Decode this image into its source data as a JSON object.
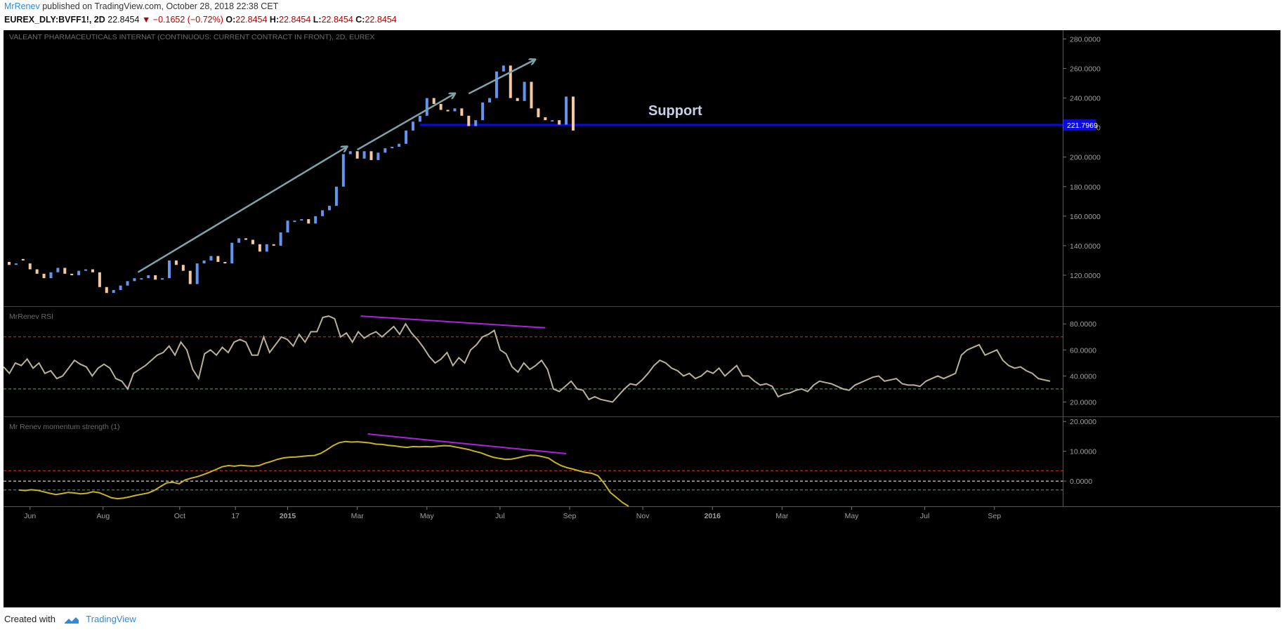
{
  "header": {
    "author": "MrRenev",
    "published_text": "published on TradingView.com, October 28, 2018 22:38 CET",
    "symbol": "EUREX_DLY:BVFF1!, 2D",
    "last": "22.8454",
    "change_arrow": "▼",
    "change": "−0.1652 (−0.72%)",
    "o_label": "O:",
    "o": "22.8454",
    "h_label": "H:",
    "h": "22.8454",
    "l_label": "L:",
    "l": "22.8454",
    "c_label": "C:",
    "c": "22.8454"
  },
  "footer": {
    "created_with": "Created with",
    "brand": "TradingView"
  },
  "colors": {
    "background": "#000000",
    "up_bar": "#6495ed",
    "down_bar": "#f5c8a0",
    "arrow": "#7fa3a8",
    "support_line": "#0a0adf",
    "divergence": "#b020e0",
    "rsi_line": "#b8b09a",
    "momentum_line": "#c8b420",
    "level_red": "#e03030",
    "level_green": "#50b050",
    "level_white": "#ffffff"
  },
  "chart_data": [
    {
      "type": "bar",
      "title": "VALEANT PHARMACEUTICALS INTERNAT (CONTINUOUS: CURRENT CONTRACT IN FRONT), 2D, EUREX",
      "ylim": [
        100,
        285
      ],
      "y_ticks": [
        "280.0000",
        "260.0000",
        "240.0000",
        "220.0000",
        "200.0000",
        "180.0000",
        "160.0000",
        "140.0000",
        "120.0000"
      ],
      "x_ticks": [
        "Jun",
        "Aug",
        "Oct",
        "17",
        "2015",
        "Mar",
        "May",
        "Jul",
        "Sep",
        "Nov",
        "2016",
        "Mar",
        "May",
        "Jul",
        "Sep"
      ],
      "x_range": [
        0,
        300
      ],
      "x_tick_positions": [
        6,
        27,
        49,
        65,
        80,
        100,
        120,
        141,
        161,
        182,
        202,
        222,
        242,
        263,
        283
      ],
      "support": {
        "label": "Support",
        "value": 221.7969,
        "value_label": "221.7969",
        "x_from": 118
      },
      "arrows": [
        {
          "from": [
            37,
            122
          ],
          "to": [
            97,
            207
          ]
        },
        {
          "from": [
            100,
            205
          ],
          "to": [
            128,
            243
          ]
        },
        {
          "from": [
            132,
            243
          ],
          "to": [
            151,
            266
          ]
        }
      ],
      "series": [
        {
          "values": [
            [
              0,
              129,
              133,
              131,
              127
            ],
            [
              2,
              127,
              131,
              130,
              128
            ],
            [
              4,
              131,
              129,
              130,
              130
            ],
            [
              6,
              128,
              124,
              124,
              124
            ],
            [
              8,
              124,
              119,
              119,
              121
            ],
            [
              10,
              121,
              117,
              117,
              118
            ],
            [
              12,
              118,
              122,
              122,
              122
            ],
            [
              14,
              122,
              125,
              125,
              125
            ],
            [
              16,
              125,
              122,
              122,
              121
            ],
            [
              18,
              121,
              119,
              119,
              120
            ],
            [
              20,
              120,
              119,
              120,
              123
            ],
            [
              22,
              123,
              125,
              125,
              124
            ],
            [
              24,
              124,
              125,
              124,
              122
            ],
            [
              26,
              122,
              114,
              114,
              112
            ],
            [
              28,
              112,
              109,
              109,
              108
            ],
            [
              30,
              108,
              112,
              112,
              110
            ],
            [
              32,
              110,
              114,
              114,
              113
            ],
            [
              34,
              113,
              117,
              117,
              116
            ],
            [
              36,
              116,
              119,
              119,
              118
            ],
            [
              38,
              118,
              119,
              119,
              118
            ],
            [
              40,
              118,
              121,
              121,
              120
            ],
            [
              42,
              120,
              120,
              120,
              117
            ],
            [
              44,
              117,
              118,
              118,
              118
            ],
            [
              46,
              118,
              130,
              130,
              130
            ],
            [
              48,
              130,
              126,
              126,
              127
            ],
            [
              50,
              127,
              124,
              124,
              123
            ],
            [
              52,
              123,
              115,
              115,
              114
            ],
            [
              54,
              114,
              125,
              125,
              128
            ],
            [
              56,
              128,
              130,
              130,
              130
            ],
            [
              58,
              130,
              132,
              132,
              133
            ],
            [
              60,
              133,
              130,
              130,
              129
            ],
            [
              62,
              129,
              129,
              129,
              128
            ],
            [
              64,
              128,
              140,
              140,
              142
            ],
            [
              66,
              142,
              146,
              146,
              145
            ],
            [
              68,
              145,
              143,
              143,
              144
            ],
            [
              70,
              144,
              140,
              140,
              141
            ],
            [
              72,
              141,
              137,
              137,
              136
            ],
            [
              74,
              136,
              140,
              140,
              141
            ],
            [
              76,
              141,
              142,
              142,
              140
            ],
            [
              78,
              140,
              140,
              140,
              149
            ],
            [
              80,
              149,
              158,
              158,
              157
            ],
            [
              82,
              157,
              156,
              156,
              157
            ],
            [
              84,
              157,
              158,
              158,
              158
            ],
            [
              86,
              158,
              158,
              158,
              155
            ],
            [
              88,
              155,
              158,
              158,
              160
            ],
            [
              90,
              160,
              163,
              163,
              164
            ],
            [
              92,
              164,
              166,
              166,
              167
            ],
            [
              94,
              167,
              174,
              174,
              180
            ],
            [
              96,
              180,
              201,
              201,
              202
            ],
            [
              98,
              202,
              203,
              203,
              204
            ],
            [
              100,
              204,
              202,
              202,
              199
            ],
            [
              102,
              199,
              205,
              205,
              204
            ],
            [
              104,
              204,
              200,
              200,
              198
            ],
            [
              106,
              198,
              205,
              205,
              203
            ],
            [
              108,
              203,
              207,
              207,
              206
            ],
            [
              110,
              206,
              208,
              208,
              207
            ],
            [
              112,
              207,
              205,
              205,
              209
            ],
            [
              114,
              209,
              212,
              212,
              218
            ],
            [
              116,
              218,
              220,
              220,
              224
            ],
            [
              118,
              224,
              226,
              226,
              228
            ],
            [
              120,
              228,
              236,
              236,
              240
            ],
            [
              122,
              240,
              238,
              238,
              236
            ],
            [
              124,
              236,
              233,
              233,
              232
            ],
            [
              126,
              232,
              230,
              230,
              231
            ],
            [
              128,
              231,
              233,
              233,
              233
            ],
            [
              130,
              233,
              227,
              227,
              228
            ],
            [
              132,
              228,
              224,
              224,
              221
            ],
            [
              134,
              221,
              226,
              226,
              225
            ],
            [
              136,
              225,
              233,
              233,
              237
            ],
            [
              138,
              237,
              238,
              238,
              240
            ],
            [
              140,
              240,
              248,
              248,
              258
            ],
            [
              142,
              258,
              259,
              259,
              262
            ],
            [
              144,
              262,
              260,
              260,
              240
            ],
            [
              146,
              240,
              248,
              248,
              238
            ],
            [
              148,
              238,
              250,
              250,
              251
            ],
            [
              150,
              251,
              245,
              245,
              233
            ],
            [
              152,
              233,
              222,
              222,
              227
            ],
            [
              154,
              227,
              233,
              233,
              225
            ],
            [
              156,
              225,
              230,
              230,
              225
            ],
            [
              158,
              225,
              223,
              223,
              222
            ],
            [
              160,
              222,
              236,
              236,
              241
            ],
            [
              162,
              241,
              219,
              219,
              218
            ]
          ]
        }
      ]
    },
    {
      "type": "line",
      "title": "MrRenev RSI",
      "ylim": [
        10,
        92
      ],
      "y_ticks": [
        "80.0000",
        "60.0000",
        "40.0000",
        "20.0000"
      ],
      "levels": [
        70,
        30
      ],
      "divergence": {
        "from": [
          101,
          86
        ],
        "to": [
          154,
          77
        ]
      },
      "series": [
        {
          "values": [
            47,
            42,
            50,
            48,
            53,
            46,
            50,
            42,
            44,
            38,
            40,
            46,
            52,
            49,
            47,
            40,
            46,
            49,
            46,
            38,
            36,
            30,
            42,
            45,
            48,
            52,
            56,
            58,
            63,
            56,
            66,
            60,
            45,
            38,
            57,
            60,
            56,
            62,
            58,
            66,
            68,
            66,
            56,
            56,
            70,
            58,
            64,
            70,
            68,
            63,
            72,
            66,
            74,
            74,
            85,
            86,
            84,
            70,
            73,
            66,
            74,
            69,
            72,
            74,
            70,
            74,
            78,
            72,
            80,
            73,
            68,
            62,
            55,
            50,
            53,
            58,
            48,
            54,
            50,
            60,
            64,
            70,
            72,
            75,
            60,
            57,
            47,
            43,
            50,
            45,
            48,
            52,
            45,
            30,
            28,
            32,
            36,
            30,
            29,
            22,
            24,
            22,
            21,
            20,
            25,
            30,
            34,
            33,
            37,
            42,
            48,
            52,
            50,
            46,
            44,
            40,
            42,
            38,
            40,
            44,
            42,
            46,
            40,
            44,
            48,
            40,
            40,
            36,
            33,
            34,
            32,
            24,
            26,
            27,
            29,
            30,
            28,
            33,
            36,
            35,
            34,
            32,
            30,
            29,
            33,
            35,
            37,
            39,
            40,
            36,
            37,
            38,
            34,
            33,
            33,
            32,
            36,
            38,
            40,
            38,
            40,
            42,
            56,
            60,
            62,
            64,
            56,
            58,
            60,
            52,
            48,
            46,
            47,
            44,
            42,
            38,
            37,
            36
          ]
        }
      ]
    },
    {
      "type": "line",
      "title": "Mr Renev momentum strength (1)",
      "ylim": [
        -8,
        21
      ],
      "y_ticks": [
        "20.0000",
        "10.0000",
        "0.0000"
      ],
      "levels": [
        3.5,
        0,
        -3
      ],
      "divergence": {
        "from": [
          103,
          15.8
        ],
        "to": [
          160,
          9.2
        ]
      },
      "series": [
        {
          "values": [
            -3.0,
            -3.2,
            -2.9,
            -3.1,
            -3.6,
            -4.1,
            -4.5,
            -4.2,
            -3.8,
            -4.0,
            -4.3,
            -4.1,
            -3.6,
            -3.9,
            -4.7,
            -5.6,
            -5.9,
            -5.7,
            -5.3,
            -4.8,
            -4.4,
            -4.0,
            -3.1,
            -1.8,
            -0.6,
            -0.4,
            -0.9,
            0.4,
            1.0,
            1.5,
            2.2,
            3.0,
            3.9,
            4.8,
            5.2,
            5.0,
            5.3,
            5.1,
            5.0,
            5.2,
            6.0,
            6.6,
            7.3,
            7.8,
            8.0,
            8.1,
            8.3,
            8.5,
            8.6,
            9.3,
            10.5,
            11.9,
            12.9,
            13.3,
            13.1,
            13.2,
            13.0,
            12.8,
            12.4,
            12.3,
            12.0,
            11.8,
            11.5,
            11.3,
            11.6,
            11.5,
            11.6,
            11.5,
            11.7,
            11.9,
            11.8,
            11.4,
            11.0,
            10.6,
            10.0,
            9.5,
            8.7,
            8.0,
            7.6,
            7.3,
            7.4,
            7.8,
            8.3,
            8.7,
            8.6,
            8.2,
            7.7,
            6.3,
            5.2,
            4.5,
            4.0,
            3.4,
            2.9,
            2.6,
            1.8,
            -0.7,
            -3.8,
            -5.5,
            -7.2,
            -8.5
          ]
        }
      ]
    }
  ]
}
